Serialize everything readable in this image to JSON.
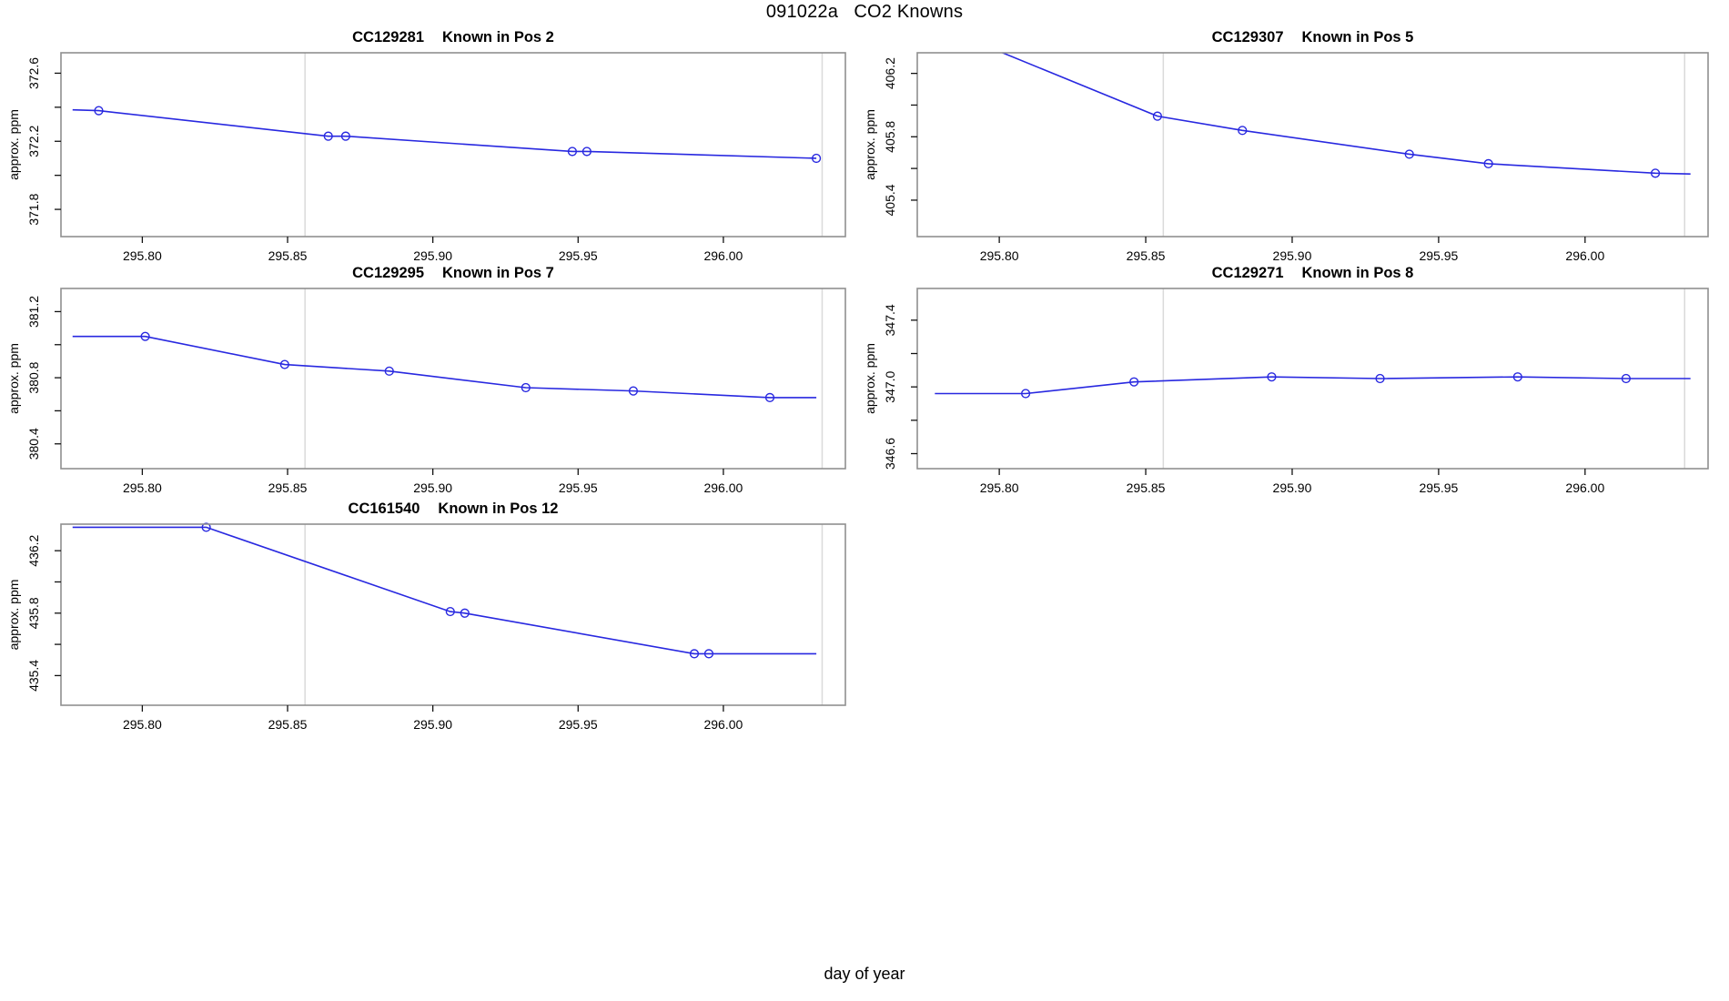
{
  "page": {
    "title": "091022a   CO2 Knowns",
    "xlabel": "day of year",
    "background": "#ffffff"
  },
  "style": {
    "line_color": "#2828e0",
    "marker_color": "#2828e0",
    "vline_color": "#dadada",
    "border_color": "#8f8f8f",
    "tick_color": "#111111",
    "text_color": "#000000"
  },
  "chart_data": [
    {
      "type": "line",
      "id": "CC129281",
      "title": "CC129281   Known in Pos 2",
      "title_parts": [
        "CC129281",
        "Known in Pos 2"
      ],
      "ylabel": "approx. ppm",
      "xlim": [
        295.772,
        296.042
      ],
      "ylim": [
        371.64,
        372.72
      ],
      "xticks": [
        {
          "v": 295.8,
          "label": "295.80"
        },
        {
          "v": 295.85,
          "label": "295.85"
        },
        {
          "v": 295.9,
          "label": "295.90"
        },
        {
          "v": 295.95,
          "label": "295.95"
        },
        {
          "v": 296.0,
          "label": "296.00"
        }
      ],
      "yticks": [
        {
          "v": 371.8,
          "label": "371.8"
        },
        {
          "v": 372.0,
          "label": ""
        },
        {
          "v": 372.2,
          "label": "372.2"
        },
        {
          "v": 372.4,
          "label": ""
        },
        {
          "v": 372.6,
          "label": "372.6"
        }
      ],
      "vlines": [
        295.856,
        296.034
      ],
      "line": [
        [
          295.776,
          372.385
        ],
        [
          295.785,
          372.38
        ],
        [
          295.864,
          372.23
        ],
        [
          295.87,
          372.23
        ],
        [
          295.948,
          372.14
        ],
        [
          295.953,
          372.14
        ],
        [
          296.032,
          372.1
        ]
      ],
      "points": [
        [
          295.785,
          372.38
        ],
        [
          295.864,
          372.23
        ],
        [
          295.87,
          372.23
        ],
        [
          295.948,
          372.14
        ],
        [
          295.953,
          372.14
        ],
        [
          296.032,
          372.1
        ]
      ]
    },
    {
      "type": "line",
      "id": "CC129307",
      "title": "CC129307   Known in Pos 5",
      "title_parts": [
        "CC129307",
        "Known in Pos 5"
      ],
      "ylabel": "approx. ppm",
      "xlim": [
        295.772,
        296.042
      ],
      "ylim": [
        405.17,
        406.33
      ],
      "xticks": [
        {
          "v": 295.8,
          "label": "295.80"
        },
        {
          "v": 295.85,
          "label": "295.85"
        },
        {
          "v": 295.9,
          "label": "295.90"
        },
        {
          "v": 295.95,
          "label": "295.95"
        },
        {
          "v": 296.0,
          "label": "296.00"
        }
      ],
      "yticks": [
        {
          "v": 405.4,
          "label": "405.4"
        },
        {
          "v": 405.6,
          "label": ""
        },
        {
          "v": 405.8,
          "label": "405.8"
        },
        {
          "v": 406.0,
          "label": ""
        },
        {
          "v": 406.2,
          "label": "406.2"
        }
      ],
      "vlines": [
        295.856,
        296.034
      ],
      "line": [
        [
          295.776,
          406.52
        ],
        [
          295.854,
          405.93
        ],
        [
          295.883,
          405.84
        ],
        [
          295.94,
          405.69
        ],
        [
          295.967,
          405.63
        ],
        [
          296.024,
          405.57
        ],
        [
          296.036,
          405.565
        ]
      ],
      "points": [
        [
          295.854,
          405.93
        ],
        [
          295.883,
          405.84
        ],
        [
          295.94,
          405.69
        ],
        [
          295.967,
          405.63
        ],
        [
          296.024,
          405.57
        ]
      ]
    },
    {
      "type": "line",
      "id": "CC129295",
      "title": "CC129295   Known in Pos 7",
      "title_parts": [
        "CC129295",
        "Known in Pos 7"
      ],
      "ylabel": "approx. ppm",
      "xlim": [
        295.772,
        296.042
      ],
      "ylim": [
        380.25,
        381.34
      ],
      "xticks": [
        {
          "v": 295.8,
          "label": "295.80"
        },
        {
          "v": 295.85,
          "label": "295.85"
        },
        {
          "v": 295.9,
          "label": "295.90"
        },
        {
          "v": 295.95,
          "label": "295.95"
        },
        {
          "v": 296.0,
          "label": "296.00"
        }
      ],
      "yticks": [
        {
          "v": 380.4,
          "label": "380.4"
        },
        {
          "v": 380.6,
          "label": ""
        },
        {
          "v": 380.8,
          "label": "380.8"
        },
        {
          "v": 381.0,
          "label": ""
        },
        {
          "v": 381.2,
          "label": "381.2"
        }
      ],
      "vlines": [
        295.856,
        296.034
      ],
      "line": [
        [
          295.776,
          381.05
        ],
        [
          295.801,
          381.05
        ],
        [
          295.849,
          380.88
        ],
        [
          295.885,
          380.84
        ],
        [
          295.932,
          380.74
        ],
        [
          295.969,
          380.72
        ],
        [
          296.016,
          380.68
        ],
        [
          296.032,
          380.68
        ]
      ],
      "points": [
        [
          295.801,
          381.05
        ],
        [
          295.849,
          380.88
        ],
        [
          295.885,
          380.84
        ],
        [
          295.932,
          380.74
        ],
        [
          295.969,
          380.72
        ],
        [
          296.016,
          380.68
        ]
      ]
    },
    {
      "type": "line",
      "id": "CC129271",
      "title": "CC129271   Known in Pos 8",
      "title_parts": [
        "CC129271",
        "Known in Pos 8"
      ],
      "ylabel": "approx. ppm",
      "xlim": [
        295.772,
        296.042
      ],
      "ylim": [
        346.51,
        347.59
      ],
      "xticks": [
        {
          "v": 295.8,
          "label": "295.80"
        },
        {
          "v": 295.85,
          "label": "295.85"
        },
        {
          "v": 295.9,
          "label": "295.90"
        },
        {
          "v": 295.95,
          "label": "295.95"
        },
        {
          "v": 296.0,
          "label": "296.00"
        }
      ],
      "yticks": [
        {
          "v": 346.6,
          "label": "346.6"
        },
        {
          "v": 346.8,
          "label": ""
        },
        {
          "v": 347.0,
          "label": "347.0"
        },
        {
          "v": 347.2,
          "label": ""
        },
        {
          "v": 347.4,
          "label": "347.4"
        }
      ],
      "vlines": [
        295.856,
        296.034
      ],
      "line": [
        [
          295.778,
          346.96
        ],
        [
          295.809,
          346.96
        ],
        [
          295.846,
          347.03
        ],
        [
          295.893,
          347.06
        ],
        [
          295.93,
          347.05
        ],
        [
          295.977,
          347.06
        ],
        [
          296.014,
          347.05
        ],
        [
          296.036,
          347.05
        ]
      ],
      "points": [
        [
          295.809,
          346.96
        ],
        [
          295.846,
          347.03
        ],
        [
          295.893,
          347.06
        ],
        [
          295.93,
          347.05
        ],
        [
          295.977,
          347.06
        ],
        [
          296.014,
          347.05
        ]
      ]
    },
    {
      "type": "line",
      "id": "CC161540",
      "title": "CC161540   Known in Pos 12",
      "title_parts": [
        "CC161540",
        "Known in Pos 12"
      ],
      "ylabel": "approx. ppm",
      "xlim": [
        295.772,
        296.042
      ],
      "ylim": [
        435.21,
        436.37
      ],
      "xticks": [
        {
          "v": 295.8,
          "label": "295.80"
        },
        {
          "v": 295.85,
          "label": "295.85"
        },
        {
          "v": 295.9,
          "label": "295.90"
        },
        {
          "v": 295.95,
          "label": "295.95"
        },
        {
          "v": 296.0,
          "label": "296.00"
        }
      ],
      "yticks": [
        {
          "v": 435.4,
          "label": "435.4"
        },
        {
          "v": 435.6,
          "label": ""
        },
        {
          "v": 435.8,
          "label": "435.8"
        },
        {
          "v": 436.0,
          "label": ""
        },
        {
          "v": 436.2,
          "label": "436.2"
        }
      ],
      "vlines": [
        295.856,
        296.034
      ],
      "line": [
        [
          295.776,
          436.35
        ],
        [
          295.822,
          436.35
        ],
        [
          295.906,
          435.81
        ],
        [
          295.911,
          435.8
        ],
        [
          295.99,
          435.54
        ],
        [
          295.995,
          435.54
        ],
        [
          296.032,
          435.54
        ]
      ],
      "points": [
        [
          295.822,
          436.35
        ],
        [
          295.906,
          435.81
        ],
        [
          295.911,
          435.8
        ],
        [
          295.99,
          435.54
        ],
        [
          295.995,
          435.54
        ]
      ]
    }
  ]
}
